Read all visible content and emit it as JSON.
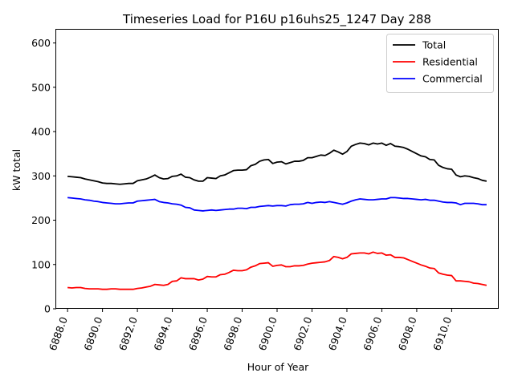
{
  "chart_data": {
    "type": "line",
    "title": "Timeseries Load for P16U p16uhs25_1247  Day 288",
    "xlabel": "Hour of Year",
    "ylabel": "kW total",
    "xlim": [
      6887.35,
      6912.65
    ],
    "ylim": [
      0,
      630
    ],
    "xticks": [
      6888,
      6890,
      6892,
      6894,
      6896,
      6898,
      6900,
      6902,
      6904,
      6906,
      6908,
      6910
    ],
    "xtick_labels": [
      "6888.0",
      "6890.0",
      "6892.0",
      "6894.0",
      "6896.0",
      "6898.0",
      "6900.0",
      "6902.0",
      "6904.0",
      "6906.0",
      "6908.0",
      "6910.0"
    ],
    "yticks": [
      0,
      100,
      200,
      300,
      400,
      500,
      600
    ],
    "ytick_labels": [
      "0",
      "100",
      "200",
      "300",
      "400",
      "500",
      "600"
    ],
    "grid": false,
    "legend_position": "top-right",
    "x_start": 6888.0,
    "x_step": 0.25,
    "series": [
      {
        "name": "Total",
        "color": "#000000",
        "values": [
          299,
          298,
          297,
          296,
          293,
          291,
          289,
          287,
          284,
          283,
          283,
          282,
          281,
          282,
          283,
          283,
          289,
          291,
          293,
          297,
          302,
          296,
          293,
          294,
          299,
          300,
          304,
          297,
          296,
          291,
          288,
          288,
          296,
          295,
          294,
          300,
          302,
          307,
          312,
          313,
          313,
          314,
          323,
          326,
          333,
          336,
          337,
          328,
          331,
          332,
          327,
          330,
          333,
          333,
          335,
          341,
          341,
          344,
          347,
          346,
          351,
          358,
          354,
          349,
          355,
          367,
          371,
          374,
          373,
          370,
          374,
          372,
          374,
          369,
          373,
          367,
          366,
          364,
          360,
          355,
          350,
          345,
          343,
          337,
          336,
          324,
          319,
          316,
          315,
          302,
          298,
          300,
          299,
          296,
          294,
          290,
          288
        ]
      },
      {
        "name": "Residential",
        "color": "#ff0000",
        "values": [
          48,
          47,
          48,
          48,
          46,
          45,
          45,
          45,
          44,
          44,
          45,
          45,
          44,
          44,
          44,
          44,
          46,
          47,
          49,
          51,
          55,
          54,
          53,
          55,
          62,
          63,
          70,
          68,
          68,
          68,
          65,
          67,
          73,
          72,
          72,
          77,
          78,
          82,
          87,
          86,
          86,
          88,
          94,
          97,
          102,
          103,
          104,
          96,
          98,
          99,
          95,
          95,
          97,
          97,
          98,
          101,
          103,
          104,
          105,
          106,
          109,
          118,
          116,
          113,
          116,
          124,
          125,
          126,
          126,
          124,
          128,
          125,
          126,
          121,
          122,
          116,
          116,
          115,
          111,
          107,
          103,
          99,
          96,
          92,
          91,
          81,
          78,
          76,
          75,
          63,
          63,
          62,
          61,
          58,
          57,
          55,
          53
        ]
      },
      {
        "name": "Commercial",
        "color": "#0000ff",
        "values": [
          251,
          250,
          249,
          248,
          246,
          245,
          243,
          242,
          240,
          239,
          238,
          237,
          237,
          238,
          239,
          239,
          243,
          244,
          245,
          246,
          247,
          242,
          240,
          239,
          237,
          236,
          234,
          229,
          228,
          223,
          222,
          221,
          222,
          223,
          222,
          223,
          224,
          225,
          225,
          227,
          227,
          226,
          229,
          229,
          231,
          232,
          233,
          232,
          233,
          233,
          232,
          235,
          236,
          236,
          237,
          240,
          238,
          240,
          241,
          240,
          242,
          240,
          238,
          236,
          239,
          243,
          246,
          248,
          247,
          246,
          246,
          247,
          248,
          248,
          251,
          251,
          250,
          249,
          249,
          248,
          247,
          246,
          247,
          245,
          245,
          243,
          241,
          240,
          240,
          239,
          235,
          238,
          238,
          238,
          237,
          235,
          235
        ]
      }
    ]
  }
}
